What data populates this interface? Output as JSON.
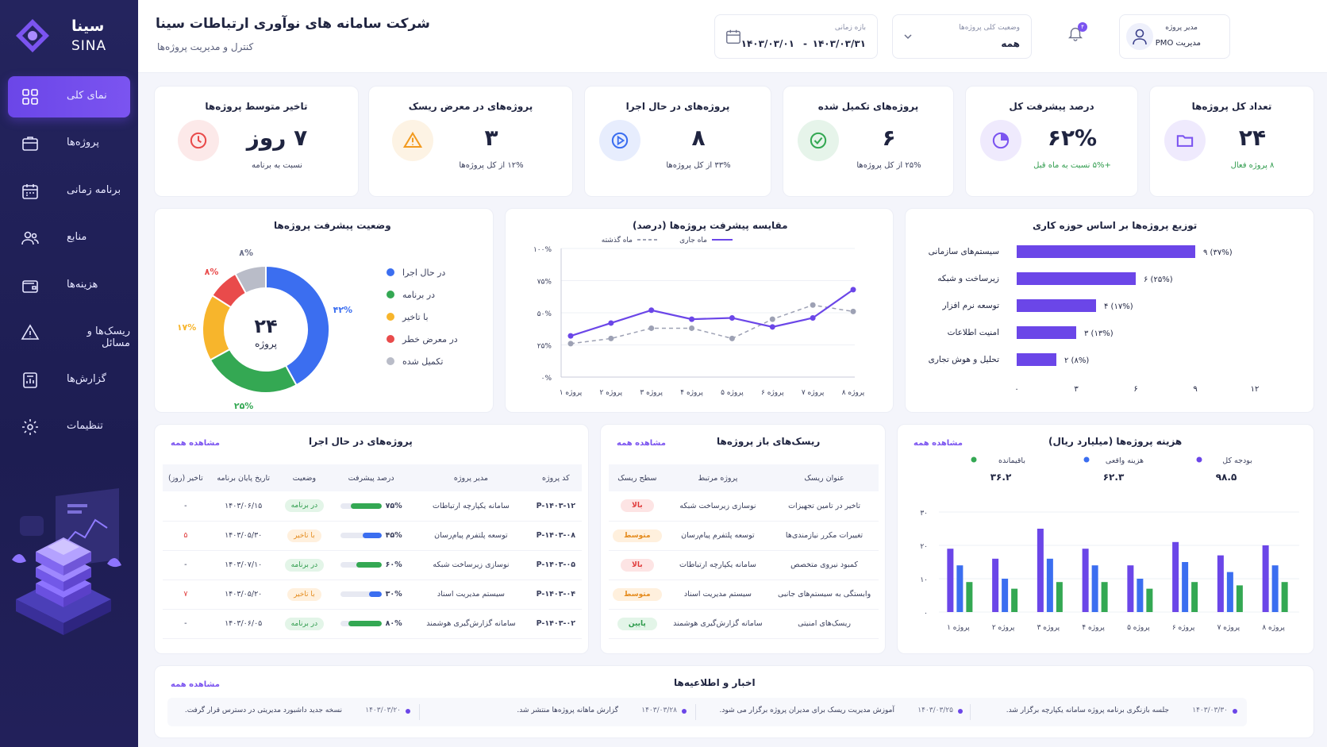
{
  "brand": {
    "name_fa": "سینا",
    "name_en": "SINA"
  },
  "header": {
    "title": "شرکت سامانه های نوآوری ارتباطات سینا",
    "subtitle": "کنترل و مدیریت پروژه‌ها",
    "period_label": "بازه زمانی",
    "period_from": "۱۴۰۳/۰۳/۰۱",
    "period_sep": "-",
    "period_to": "۱۴۰۳/۰۳/۳۱",
    "status_label": "وضعیت کلی پروژه‌ها",
    "status_value": "همه",
    "notification_count": "۴",
    "user_role": "مدیر پروژه",
    "user_name": "مدیریت PMO"
  },
  "sidebar": {
    "items": [
      {
        "label": "نمای کلی",
        "icon": "grid-icon",
        "active": true
      },
      {
        "label": "پروژه‌ها",
        "icon": "briefcase-icon"
      },
      {
        "label": "برنامه زمانی",
        "icon": "calendar-icon"
      },
      {
        "label": "منابع",
        "icon": "users-icon"
      },
      {
        "label": "هزینه‌ها",
        "icon": "wallet-icon"
      },
      {
        "label": "ریسک‌ها و مسائل",
        "icon": "warning-icon"
      },
      {
        "label": "گزارش‌ها",
        "icon": "report-icon"
      },
      {
        "label": "تنظیمات",
        "icon": "gear-icon"
      }
    ]
  },
  "kpis": [
    {
      "title": "تعداد کل پروژه‌ها",
      "value": "۲۴",
      "sub": "۸ پروژه فعال",
      "color": "#7b54f0",
      "sub_color": "#2e9b4c",
      "icon": "folder-icon"
    },
    {
      "title": "درصد پیشرفت کل",
      "value": "۶۲%",
      "sub": "+۵% نسبت به ماه قبل",
      "color": "#7b54f0",
      "sub_color": "#2e9b4c",
      "icon": "pie-icon"
    },
    {
      "title": "پروژه‌های تکمیل شده",
      "value": "۶",
      "sub": "۲۵% از کل پروژه‌ها",
      "color": "#34a853",
      "sub_color": "#3a3f5c",
      "icon": "check-icon"
    },
    {
      "title": "پروژه‌های در حال اجرا",
      "value": "۸",
      "sub": "۳۳% از کل پروژه‌ها",
      "color": "#3b6ef0",
      "sub_color": "#3a3f5c",
      "icon": "play-icon"
    },
    {
      "title": "پروژه‌های در معرض ریسک",
      "value": "۳",
      "sub": "۱۲% از کل پروژه‌ها",
      "color": "#f29a1f",
      "sub_color": "#3a3f5c",
      "icon": "warning-icon"
    },
    {
      "title": "تاخیر متوسط پروژه‌ها",
      "value": "۷ روز",
      "sub": "نسبت به برنامه",
      "color": "#e94b4b",
      "sub_color": "#3a3f5c",
      "icon": "clock-icon"
    }
  ],
  "donut": {
    "title": "وضعیت پیشرفت پروژه‌ها",
    "center_value": "۲۴",
    "center_label": "پروژه",
    "chart_data": {
      "type": "pie",
      "categories": [
        "در حال اجرا",
        "در برنامه",
        "با تاخیر",
        "در معرض خطر",
        "تکمیل شده"
      ],
      "values": [
        42,
        25,
        17,
        8,
        8
      ],
      "value_labels": [
        "۴۲%",
        "۲۵%",
        "۱۷%",
        "۸%",
        "۸%"
      ],
      "colors": [
        "#3b6ef0",
        "#34a853",
        "#f7b52c",
        "#e94b4b",
        "#b9bcc8"
      ]
    }
  },
  "line": {
    "title": "مقایسه پیشرفت پروژه‌ها (درصد)",
    "chart_data": {
      "type": "line",
      "categories": [
        "پروژه ۱",
        "پروژه ۲",
        "پروژه ۳",
        "پروژه ۴",
        "پروژه ۵",
        "پروژه ۶",
        "پروژه ۷",
        "پروژه ۸"
      ],
      "series": [
        {
          "name": "ماه جاری",
          "values": [
            32,
            42,
            52,
            45,
            46,
            39,
            46,
            68
          ],
          "color": "#6b46e8",
          "dashed": false
        },
        {
          "name": "ماه گذشته",
          "values": [
            26,
            30,
            38,
            38,
            30,
            45,
            56,
            51
          ],
          "color": "#9da1b4",
          "dashed": true
        }
      ],
      "ylim": [
        0,
        100
      ],
      "yticks": [
        "۰%",
        "۲۵%",
        "۵۰%",
        "۷۵%",
        "۱۰۰%"
      ]
    }
  },
  "hbar": {
    "title": "توزیع پروژه‌ها بر اساس حوزه کاری",
    "chart_data": {
      "type": "bar",
      "categories": [
        "سیستم‌های سازمانی",
        "زیرساخت و شبکه",
        "توسعه نرم افزار",
        "امنیت اطلاعات",
        "تحلیل و هوش تجاری"
      ],
      "values": [
        9,
        6,
        4,
        3,
        2
      ],
      "value_labels": [
        "۹ (۳۷%)",
        "۶ (۲۵%)",
        "۴ (۱۷%)",
        "۳ (۱۳%)",
        "۲ (۸%)"
      ],
      "xlim": [
        0,
        12
      ],
      "xticks": [
        "۰",
        "۳",
        "۶",
        "۹",
        "۱۲"
      ],
      "color": "#6b46e8"
    }
  },
  "projects": {
    "title": "پروژه‌های در حال اجرا",
    "see_all": "مشاهده همه",
    "columns": [
      "کد پروژه",
      "مدیر پروژه",
      "درصد پیشرفت",
      "وضعیت",
      "تاریخ پایان برنامه",
      "تاخیر (روز)"
    ],
    "rows": [
      {
        "code": "P-۱۴۰۳-۱۲",
        "name": "سامانه یکپارچه ارتباطات",
        "progress": 75,
        "progress_label": "۷۵%",
        "status": "در برنامه",
        "status_kind": "green",
        "end": "۱۴۰۳/۰۶/۱۵",
        "delay": "-",
        "delay_red": false
      },
      {
        "code": "P-۱۴۰۳-۰۸",
        "name": "توسعه پلتفرم پیام‌رسان",
        "progress": 45,
        "progress_label": "۴۵%",
        "status": "با تاخیر",
        "status_kind": "orange",
        "end": "۱۴۰۳/۰۵/۳۰",
        "delay": "۵",
        "delay_red": true
      },
      {
        "code": "P-۱۴۰۳-۰۵",
        "name": "نوسازی زیرساخت شبکه",
        "progress": 60,
        "progress_label": "۶۰%",
        "status": "در برنامه",
        "status_kind": "green",
        "end": "۱۴۰۳/۰۷/۱۰",
        "delay": "-",
        "delay_red": false
      },
      {
        "code": "P-۱۴۰۳-۰۴",
        "name": "سیستم مدیریت اسناد",
        "progress": 30,
        "progress_label": "۳۰%",
        "status": "با تاخیر",
        "status_kind": "orange",
        "end": "۱۴۰۳/۰۵/۲۰",
        "delay": "۷",
        "delay_red": true
      },
      {
        "code": "P-۱۴۰۳-۰۲",
        "name": "سامانه گزارش‌گیری هوشمند",
        "progress": 80,
        "progress_label": "۸۰%",
        "status": "در برنامه",
        "status_kind": "green",
        "end": "۱۴۰۳/۰۶/۰۵",
        "delay": "-",
        "delay_red": false
      }
    ]
  },
  "risks": {
    "title": "ریسک‌های باز پروژه‌ها",
    "see_all": "مشاهده همه",
    "columns": [
      "عنوان ریسک",
      "پروژه مرتبط",
      "سطح ریسک"
    ],
    "rows": [
      {
        "title": "تاخیر در تامین تجهیزات",
        "project": "نوسازی زیرساخت شبکه",
        "level": "بالا",
        "kind": "red"
      },
      {
        "title": "تغییرات مکرر نیازمندی‌ها",
        "project": "توسعه پلتفرم پیام‌رسان",
        "level": "متوسط",
        "kind": "orange"
      },
      {
        "title": "کمبود نیروی متخصص",
        "project": "سامانه یکپارچه ارتباطات",
        "level": "بالا",
        "kind": "red"
      },
      {
        "title": "وابستگی به سیستم‌های جانبی",
        "project": "سیستم مدیریت اسناد",
        "level": "متوسط",
        "kind": "orange"
      },
      {
        "title": "ریسک‌های امنیتی",
        "project": "سامانه گزارش‌گیری هوشمند",
        "level": "پایین",
        "kind": "green"
      }
    ]
  },
  "cost": {
    "title": "هزینه پروژه‌ها (میلیارد ریال)",
    "see_all": "مشاهده همه",
    "legend": [
      {
        "label": "بودجه کل",
        "value": "۹۸.۵",
        "color": "#6b46e8"
      },
      {
        "label": "هزینه واقعی",
        "value": "۶۲.۳",
        "color": "#3b6ef0"
      },
      {
        "label": "باقیمانده",
        "value": "۳۶.۲",
        "color": "#34a853"
      }
    ],
    "chart_data": {
      "type": "bar",
      "categories": [
        "پروژه ۱",
        "پروژه ۲",
        "پروژه ۳",
        "پروژه ۴",
        "پروژه ۵",
        "پروژه ۶",
        "پروژه ۷",
        "پروژه ۸"
      ],
      "series": [
        {
          "name": "بودجه کل",
          "values": [
            19,
            16,
            25,
            19,
            14,
            21,
            17,
            20
          ],
          "color": "#6b46e8"
        },
        {
          "name": "هزینه واقعی",
          "values": [
            14,
            10,
            16,
            14,
            10,
            15,
            12,
            14
          ],
          "color": "#3b6ef0"
        },
        {
          "name": "باقیمانده",
          "values": [
            9,
            7,
            9,
            9,
            7,
            9,
            8,
            9
          ],
          "color": "#34a853"
        }
      ],
      "ylim": [
        0,
        30
      ],
      "yticks": [
        "۰",
        "۱۰",
        "۲۰",
        "۳۰"
      ]
    }
  },
  "news": {
    "title": "اخبار و اطلاعیه‌ها",
    "see_all": "مشاهده همه",
    "items": [
      {
        "date": "۱۴۰۳/۰۳/۳۰",
        "text": "جلسه بازنگری برنامه پروژه سامانه یکپارچه برگزار شد."
      },
      {
        "date": "۱۴۰۳/۰۳/۲۵",
        "text": "آموزش مدیریت ریسک برای مدیران پروژه برگزار می شود."
      },
      {
        "date": "۱۴۰۳/۰۳/۲۸",
        "text": "گزارش ماهانه پروژه‌ها منتشر شد."
      },
      {
        "date": "۱۴۰۳/۰۳/۲۰",
        "text": "نسخه جدید داشبورد مدیریتی در دسترس قرار گرفت."
      }
    ]
  }
}
